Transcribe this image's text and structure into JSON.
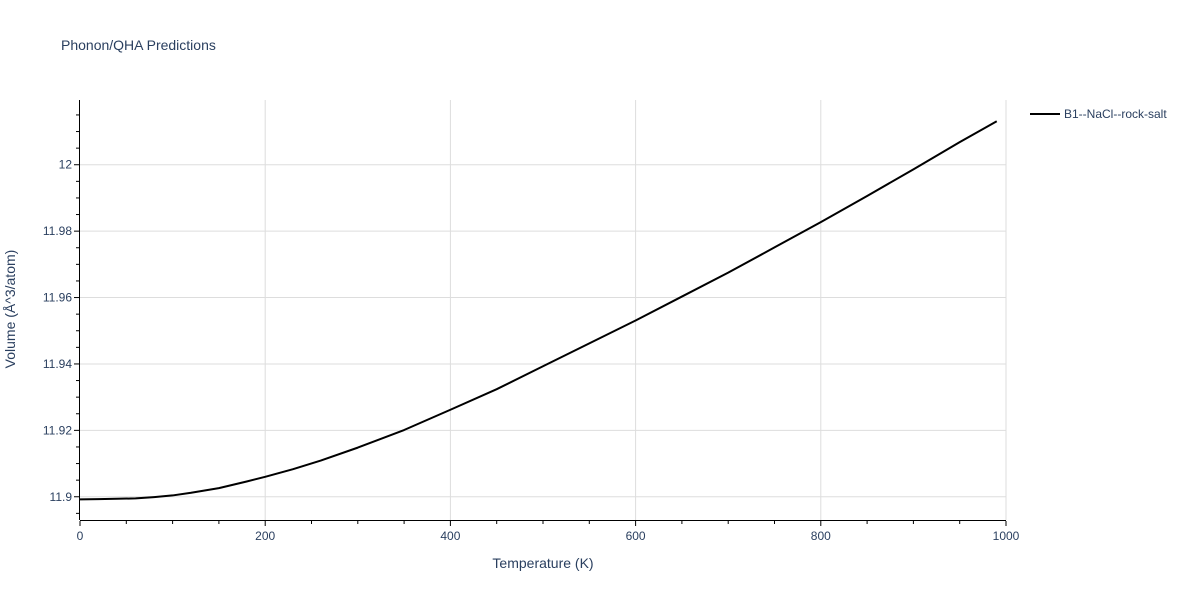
{
  "chart_data": {
    "type": "line",
    "title": "Phonon/QHA Predictions",
    "xlabel": "Temperature (K)",
    "ylabel": "Volume (Å^3/atom)",
    "xlim": [
      0,
      1000
    ],
    "ylim": [
      11.893,
      12.0195
    ],
    "x_ticks": [
      0,
      200,
      400,
      600,
      800,
      1000
    ],
    "x_tick_labels": [
      "0",
      "200",
      "400",
      "600",
      "800",
      "1000"
    ],
    "y_ticks": [
      11.9,
      11.92,
      11.94,
      11.96,
      11.98,
      12.0
    ],
    "y_tick_labels": [
      "11.9",
      "11.92",
      "11.94",
      "11.96",
      "11.98",
      "12"
    ],
    "grid": true,
    "legend_position": "top-right",
    "series": [
      {
        "name": "B1--NaCl--rock-salt",
        "color": "#000000",
        "x": [
          0,
          20,
          40,
          60,
          70,
          80,
          100,
          120,
          150,
          180,
          200,
          230,
          260,
          300,
          350,
          400,
          450,
          500,
          550,
          600,
          650,
          700,
          750,
          800,
          850,
          900,
          950,
          990
        ],
        "y": [
          11.8992,
          11.8993,
          11.8994,
          11.8995,
          11.8997,
          11.8999,
          11.9004,
          11.9012,
          11.9026,
          11.9046,
          11.906,
          11.9083,
          11.9109,
          11.9148,
          11.9201,
          11.9262,
          11.9324,
          11.9393,
          11.9462,
          11.9531,
          11.9603,
          11.9675,
          11.9751,
          11.9827,
          11.9906,
          11.9986,
          12.0068,
          12.0131
        ]
      }
    ]
  }
}
